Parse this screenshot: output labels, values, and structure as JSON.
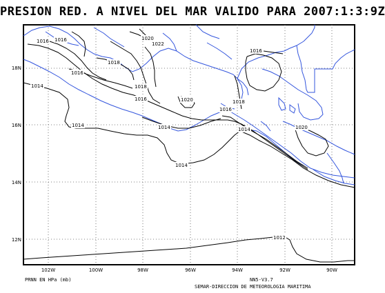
{
  "title": "PRESION RED. A NIVEL DEL MAR VALIDO PARA 2007:1:3:9Z",
  "footer": {
    "units": "PRNN EN HPa (mb)",
    "version": "NN5-V3.7",
    "organization": "SEMAR-DIRECCION DE METEOROLOGIA MARITIMA"
  },
  "axes": {
    "lon_labels": [
      "102W",
      "100W",
      "98W",
      "96W",
      "94W",
      "92W",
      "90W"
    ],
    "lat_labels": [
      "18N",
      "16N",
      "14N",
      "12N"
    ]
  },
  "colors": {
    "coastline": "#3355dd",
    "isobar": "#000000",
    "grid": "#555555"
  },
  "isobar_labels": [
    "1016",
    "1016",
    "1020",
    "1022",
    "1016",
    "1018",
    "1016",
    "1014",
    "1018",
    "1016",
    "1020",
    "1016",
    "1018",
    "1014",
    "1014",
    "1014",
    "1020",
    "1014",
    "1012"
  ]
}
